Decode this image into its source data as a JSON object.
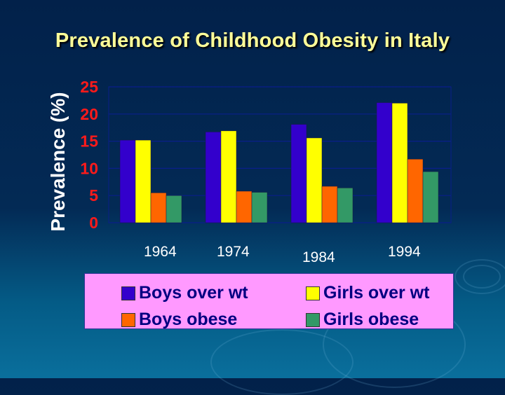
{
  "chart_data": {
    "type": "bar",
    "title": "Prevalence of Childhood Obesity in Italy",
    "xlabel": "",
    "ylabel": "Prevalence (%)",
    "ylim": [
      0,
      25
    ],
    "yticks": [
      "0",
      "5",
      "10",
      "15",
      "20",
      "25"
    ],
    "grid": true,
    "categories": [
      "1964",
      "1974",
      "1984",
      "1994"
    ],
    "series": [
      {
        "name": "Boys over wt",
        "color": "#3300cc",
        "values": [
          15.2,
          16.7,
          18.1,
          22.1
        ]
      },
      {
        "name": "Girls over wt",
        "color": "#ffff00",
        "values": [
          15.2,
          16.9,
          15.6,
          22.0
        ]
      },
      {
        "name": "Boys obese",
        "color": "#ff6600",
        "values": [
          5.5,
          5.8,
          6.7,
          11.7
        ]
      },
      {
        "name": "Girls obese",
        "color": "#339966",
        "values": [
          5.0,
          5.6,
          6.4,
          9.4
        ]
      }
    ],
    "legend_position": "bottom"
  }
}
